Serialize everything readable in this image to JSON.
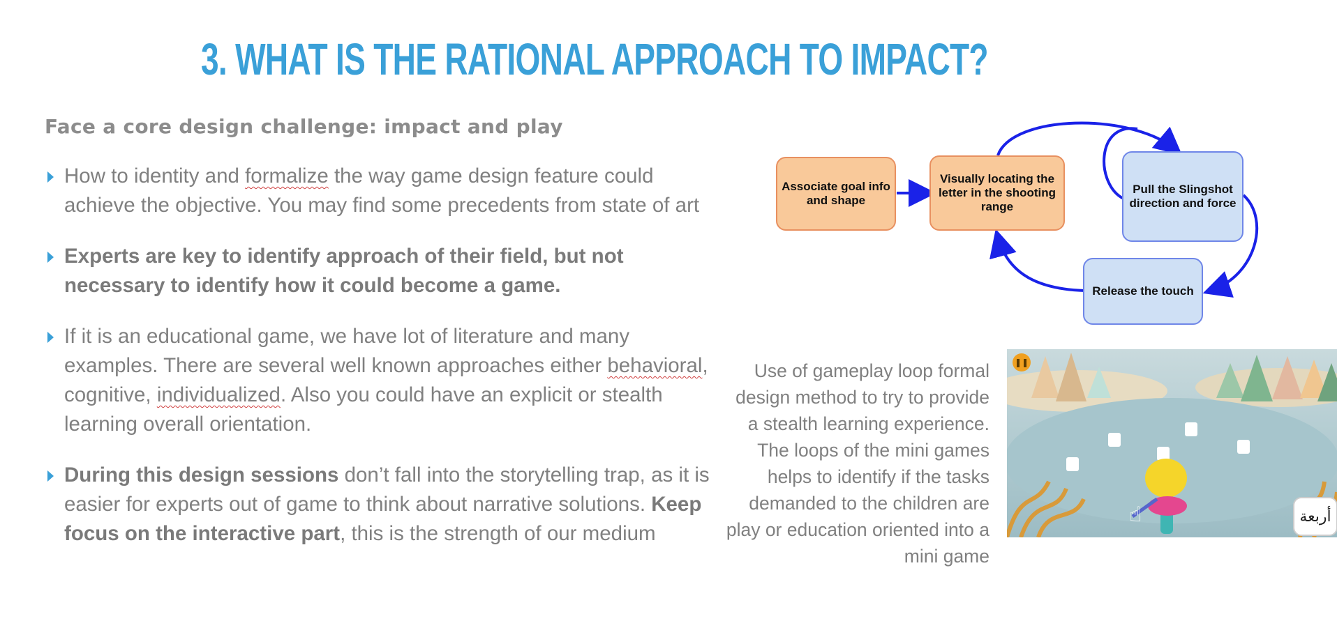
{
  "slide": {
    "title": "3. WHAT IS THE RATIONAL APPROACH TO IMPACT?",
    "subtitle": "Face a core design challenge: impact and play",
    "bullets": [
      {
        "segments": [
          {
            "text": "How to identity and ",
            "style": "normal"
          },
          {
            "text": "formalize",
            "style": "squiggle"
          },
          {
            "text": " the way  game design feature could achieve the objective. You may find some precedents from state of art",
            "style": "normal"
          }
        ]
      },
      {
        "segments": [
          {
            "text": "Experts are key to identify approach of their field, but not necessary to identify how it could become a game.",
            "style": "bold"
          }
        ]
      },
      {
        "segments": [
          {
            "text": "If it is an educational game, we have lot of literature and many examples. There are several well known approaches either ",
            "style": "normal"
          },
          {
            "text": "behavioral",
            "style": "squiggle"
          },
          {
            "text": ", cognitive, ",
            "style": "normal"
          },
          {
            "text": "individualized",
            "style": "squiggle"
          },
          {
            "text": ". Also you could have an explicit or stealth learning overall orientation.",
            "style": "normal"
          }
        ]
      },
      {
        "segments": [
          {
            "text": "During this design sessions",
            "style": "bold"
          },
          {
            "text": " don’t fall into the storytelling trap, as it is easier for experts out of game to think about narrative solutions. ",
            "style": "normal"
          },
          {
            "text": "Keep focus on the interactive part",
            "style": "bold"
          },
          {
            "text": ", this is the strength of our medium",
            "style": "normal"
          }
        ]
      }
    ],
    "caption": "Use of gameplay loop formal design method to try to provide a stealth learning experience. The loops of the mini games helps to identify if the tasks demanded to the children are play or education oriented into a mini game"
  },
  "diagram": {
    "nodes": [
      {
        "id": "associate",
        "label": "Associate goal info and shape",
        "color": "#f9c99a"
      },
      {
        "id": "locate",
        "label": "Visually locating the letter in the shooting range",
        "color": "#f9c99a"
      },
      {
        "id": "pull",
        "label": "Pull the Slingshot direction and force",
        "color": "#cfe0f5"
      },
      {
        "id": "release",
        "label": "Release the touch",
        "color": "#cfe0f5"
      }
    ],
    "arrow_color": "#1a22e8"
  },
  "game_screenshot": {
    "word_button": "أربعة",
    "icons": [
      "pause-icon",
      "hand-pointer-icon"
    ]
  },
  "colors": {
    "title": "#3aa0d8",
    "text": "#808080",
    "bullet_marker": "#3aa0d8"
  }
}
